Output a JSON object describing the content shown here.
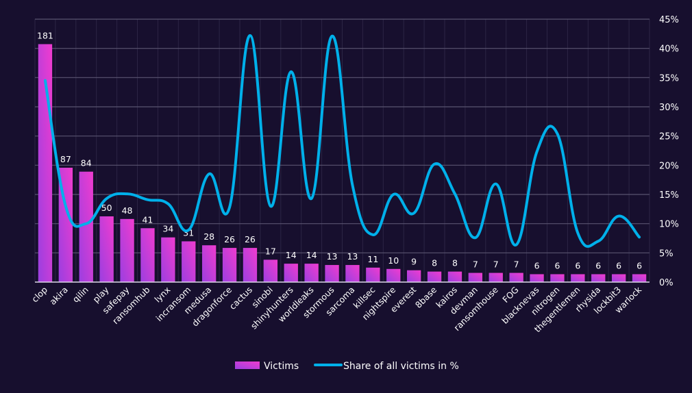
{
  "chart_data": {
    "type": "bar",
    "title": "",
    "xlabel": "",
    "ylabel": "",
    "y2label": "",
    "categories": [
      "clop",
      "akira",
      "qilin",
      "play",
      "safepay",
      "ransomhub",
      "lynx",
      "incransom",
      "medusa",
      "dragonforce",
      "cactus",
      "sinobi",
      "shinyhunters",
      "worldleaks",
      "stormous",
      "sarcoma",
      "killsec",
      "nightspire",
      "everest",
      "8base",
      "kairos",
      "devman",
      "ransomhouse",
      "FOG",
      "blacknevas",
      "nitrogen",
      "thegentlemen",
      "rhysida",
      "lockbit3",
      "warlock"
    ],
    "series": [
      {
        "name": "Victims",
        "type": "bar",
        "axis": "left",
        "color_start": "#9b3fe0",
        "color_end": "#f03ccf",
        "values": [
          181,
          87,
          84,
          50,
          48,
          41,
          34,
          31,
          28,
          26,
          26,
          17,
          14,
          14,
          13,
          13,
          11,
          10,
          9,
          8,
          8,
          7,
          7,
          7,
          6,
          6,
          6,
          6,
          6,
          6
        ],
        "data_labels": [
          "181",
          "87",
          "84",
          "50",
          "48",
          "41",
          "34",
          "31",
          "28",
          "26",
          "26",
          "17",
          "14",
          "14",
          "13",
          "13",
          "11",
          "10",
          "9",
          "8",
          "8",
          "7",
          "7",
          "7",
          "6",
          "6",
          "6",
          "6",
          "6",
          "6"
        ]
      },
      {
        "name": "Share of all victims in %",
        "type": "line",
        "smooth": true,
        "axis": "right",
        "color": "#00b0ea",
        "values": [
          34.5,
          13.0,
          10.0,
          14.3,
          15.1,
          14.1,
          13.4,
          8.9,
          18.5,
          12.8,
          42.2,
          13.0,
          36.0,
          14.3,
          42.1,
          16.6,
          8.1,
          15.0,
          11.8,
          20.2,
          15.1,
          7.6,
          16.8,
          6.4,
          22.3,
          25.4,
          8.4,
          7.0,
          11.3,
          7.7
        ]
      }
    ],
    "y_left": {
      "range": [
        0,
        200
      ],
      "visible": false
    },
    "y_right": {
      "range": [
        0,
        45
      ],
      "ticks": [
        0,
        5,
        10,
        15,
        20,
        25,
        30,
        35,
        40,
        45
      ],
      "tick_labels": [
        "0%",
        "5%",
        "10%",
        "15%",
        "20%",
        "25%",
        "30%",
        "35%",
        "40%",
        "45%"
      ]
    },
    "grid": true,
    "legend": {
      "position": "bottom-center",
      "items": [
        {
          "label": "Victims",
          "kind": "bar"
        },
        {
          "label": "Share of all victims in %",
          "kind": "line"
        }
      ]
    }
  }
}
